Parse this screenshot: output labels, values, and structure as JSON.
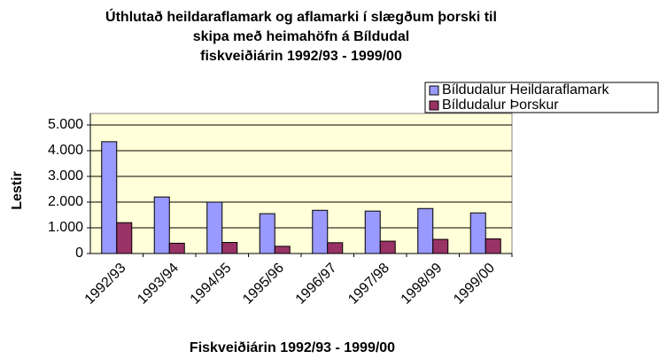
{
  "chart_data": {
    "type": "bar",
    "title": [
      "Úthlutað heildaraflamark og aflamarki í slægðum þorski til",
      "skipa með heimahöfn á Bíldudal",
      "fiskveiðiárin 1992/93 - 1999/00"
    ],
    "x_label": "Fiskveiðiárin 1992/93 - 1999/00",
    "y_label": "Lestir",
    "categories": [
      "1992/93",
      "1993/94",
      "1994/95",
      "1995/96",
      "1996/97",
      "1997/98",
      "1998/99",
      "1999/00"
    ],
    "series": [
      {
        "name": "Bíldudalur Heildaraflamark",
        "color": "#9999ff",
        "values": [
          4350,
          2200,
          2000,
          1550,
          1680,
          1650,
          1750,
          1580
        ]
      },
      {
        "name": "Bíldudalur Þorskur",
        "color": "#993366",
        "values": [
          1200,
          400,
          430,
          280,
          420,
          480,
          550,
          570
        ]
      }
    ],
    "ylim": [
      0,
      5000
    ],
    "yticks": [
      0,
      {
        "value": 1000,
        "label": "1.000"
      },
      {
        "value": 2000,
        "label": "2.000"
      },
      {
        "value": 3000,
        "label": "3.000"
      },
      {
        "value": 4000,
        "label": "4.000"
      },
      {
        "value": 5000,
        "label": "5.000"
      }
    ],
    "grid": true,
    "legend": "top-right"
  }
}
